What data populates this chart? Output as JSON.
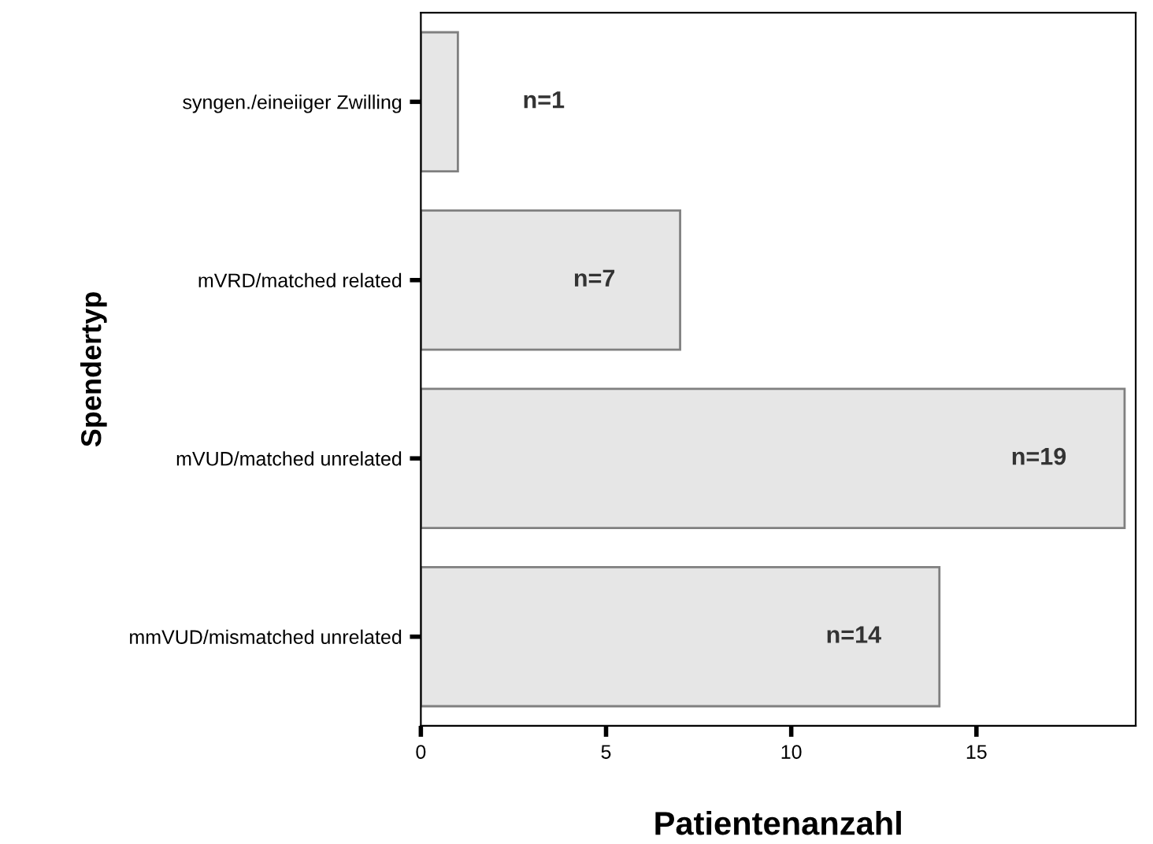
{
  "chart_data": {
    "type": "bar",
    "orientation": "horizontal",
    "xlabel": "Patientenanzahl",
    "ylabel": "Spendertyp",
    "categories": [
      "syngen./eineiiger Zwilling",
      "mVRD/matched related",
      "mVUD/matched unrelated",
      "mmVUD/mismatched unrelated"
    ],
    "values": [
      1,
      7,
      19,
      14
    ],
    "color": "#e6e6e6",
    "value_labels": [
      "n=1",
      "n=7",
      "n=19",
      "n=14"
    ],
    "xlim": [
      0,
      19.3
    ],
    "xticks": [
      0,
      5,
      10,
      15
    ],
    "grid": false,
    "legend": false
  }
}
